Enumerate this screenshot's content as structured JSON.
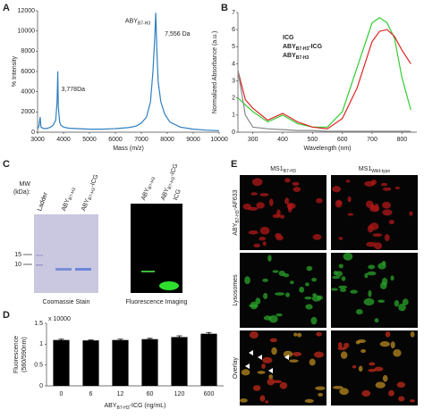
{
  "chart_data": [
    {
      "type": "line",
      "panel": "A",
      "ylabel": "% Intensity",
      "xlabel": "Mass (m/z)",
      "annotations": [
        "3,778Da",
        [
          "ABY",
          "B7-H3"
        ],
        "7,556 Da"
      ],
      "x": [
        3000,
        3050,
        3100,
        3130,
        3200,
        3300,
        3400,
        3500,
        3600,
        3700,
        3750,
        3778,
        3800,
        3850,
        3900,
        4000,
        4200,
        4500,
        5000,
        5500,
        6000,
        6500,
        6800,
        7000,
        7200,
        7350,
        7450,
        7520,
        7556,
        7600,
        7650,
        7750,
        7900,
        8100,
        8500,
        9000,
        9500,
        10000
      ],
      "values": [
        300,
        600,
        1500,
        500,
        400,
        350,
        400,
        500,
        700,
        1200,
        3000,
        6000,
        2500,
        1000,
        700,
        500,
        400,
        350,
        300,
        300,
        350,
        450,
        600,
        900,
        1500,
        3000,
        6000,
        9500,
        11800,
        8000,
        5000,
        3000,
        1800,
        1000,
        500,
        300,
        200,
        150
      ],
      "color": "#2f7fc0",
      "xlim": [
        3000,
        10000
      ],
      "xticks": [
        3000,
        4000,
        5000,
        6000,
        7000,
        8000,
        9000,
        10000
      ],
      "ylim": [
        0,
        12000
      ],
      "yticks": [
        0,
        2000,
        4000,
        6000,
        8000,
        10000,
        12000
      ]
    },
    {
      "type": "line",
      "panel": "B",
      "ylabel": "Normalized Absorbance (a.u.)",
      "xlabel": "Wavelength (nm)",
      "legend": "upper center",
      "x": [
        250,
        275,
        300,
        350,
        400,
        450,
        500,
        550,
        600,
        650,
        700,
        725,
        750,
        775,
        800,
        830
      ],
      "series": [
        {
          "name": [
            "ICG"
          ],
          "color": "#33cc33",
          "values": [
            2.0,
            1.6,
            1.2,
            0.6,
            1.0,
            0.5,
            0.3,
            0.3,
            1.2,
            3.8,
            6.4,
            6.7,
            6.4,
            5.5,
            3.2,
            1.3
          ]
        },
        {
          "name": [
            "ABY",
            "B7-H3",
            "-ICG"
          ],
          "color": "#dd2222",
          "values": [
            3.6,
            1.9,
            1.4,
            0.7,
            1.1,
            0.6,
            0.3,
            0.2,
            0.8,
            2.6,
            5.3,
            5.9,
            6.0,
            5.6,
            4.8,
            4.0
          ]
        },
        {
          "name": [
            "ABY",
            "B7-H3"
          ],
          "color": "#888888",
          "values": [
            3.6,
            1.0,
            0.3,
            0.2,
            0.15,
            0.1,
            0.1,
            0.05,
            0.05,
            0.05,
            0.05,
            0.05,
            0.05,
            0.05,
            0.05,
            0.05
          ]
        }
      ],
      "xlim": [
        250,
        850
      ],
      "xticks": [
        300,
        400,
        500,
        600,
        700,
        800
      ],
      "ylim": [
        0,
        7
      ],
      "yticks": [
        0,
        1,
        2,
        3,
        4,
        5,
        6,
        7
      ]
    },
    {
      "type": "bar",
      "panel": "D",
      "ylabel": [
        "Fluorescence",
        "(560/590nm)"
      ],
      "ylabel_note": "x 10000",
      "xlabel": [
        "ABY",
        "B7-H3",
        "-ICG (ng/mL)"
      ],
      "categories": [
        "0",
        "6",
        "12",
        "60",
        "120",
        "600"
      ],
      "values": [
        1.1,
        1.09,
        1.1,
        1.12,
        1.17,
        1.25
      ],
      "errors": [
        0.02,
        0.01,
        0.02,
        0.02,
        0.03,
        0.03
      ],
      "color": "#000000",
      "ylim": [
        0,
        1.5
      ],
      "yticks": [
        0,
        0.5,
        1,
        1.5
      ]
    }
  ],
  "gel": {
    "panel": "C",
    "left_lanes": [
      "Ladder",
      [
        "ABY",
        "B7-H3"
      ],
      [
        "ABY",
        "B7-H3",
        "-ICG"
      ]
    ],
    "mw_label": [
      "MW",
      "(kDa):"
    ],
    "markers": [
      "15",
      "10"
    ],
    "left_caption": "Coomassie Stain",
    "right_lanes": [
      [
        "ABY",
        "B7-H3"
      ],
      [
        "ABY",
        "B7-H3",
        "-ICG"
      ],
      "ICG"
    ],
    "right_caption": "Fluorescence Imaging"
  },
  "microscopy": {
    "panel": "E",
    "columns": [
      [
        "MS1",
        "B7-H3"
      ],
      [
        "MS1",
        "Wild-type"
      ]
    ],
    "rows": [
      [
        "ABY",
        "B7-H3",
        "-AF633"
      ],
      "Lysosomes",
      "Overlay"
    ]
  }
}
